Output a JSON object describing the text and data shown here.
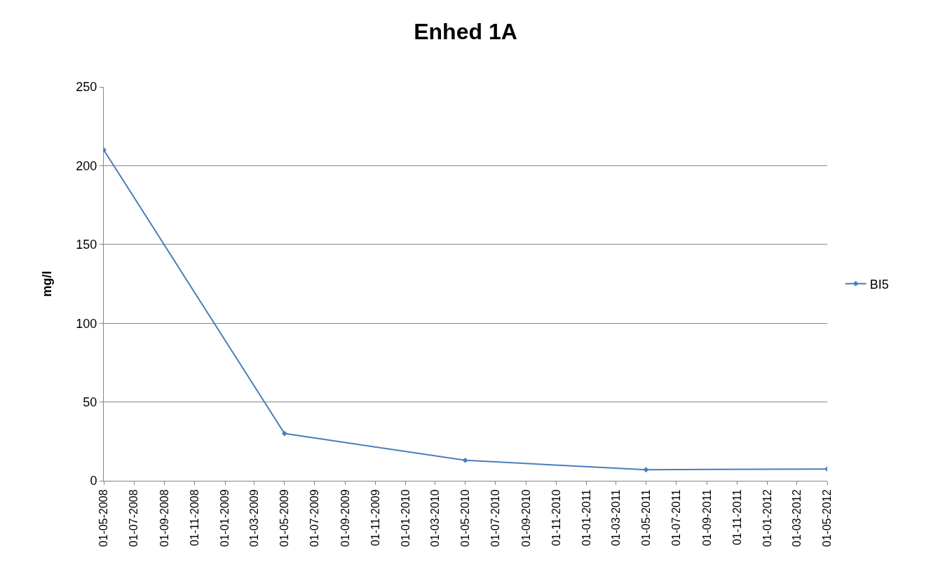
{
  "chart_data": {
    "type": "line",
    "title": "Enhed 1A",
    "ylabel": "mg/l",
    "x": [
      "2008-05-01",
      "2009-05-01",
      "2010-05-01",
      "2011-05-01",
      "2012-05-01"
    ],
    "series": [
      {
        "name": "BI5",
        "color": "#4a7ebb",
        "values": [
          210,
          30,
          13,
          7,
          7.5
        ]
      }
    ],
    "xlim": [
      "2008-05-01",
      "2012-05-01"
    ],
    "xticks": [
      {
        "value": "2008-05-01",
        "label": "01-05-2008"
      },
      {
        "value": "2008-07-01",
        "label": "01-07-2008"
      },
      {
        "value": "2008-09-01",
        "label": "01-09-2008"
      },
      {
        "value": "2008-11-01",
        "label": "01-11-2008"
      },
      {
        "value": "2009-01-01",
        "label": "01-01-2009"
      },
      {
        "value": "2009-03-01",
        "label": "01-03-2009"
      },
      {
        "value": "2009-05-01",
        "label": "01-05-2009"
      },
      {
        "value": "2009-07-01",
        "label": "01-07-2009"
      },
      {
        "value": "2009-09-01",
        "label": "01-09-2009"
      },
      {
        "value": "2009-11-01",
        "label": "01-11-2009"
      },
      {
        "value": "2010-01-01",
        "label": "01-01-2010"
      },
      {
        "value": "2010-03-01",
        "label": "01-03-2010"
      },
      {
        "value": "2010-05-01",
        "label": "01-05-2010"
      },
      {
        "value": "2010-07-01",
        "label": "01-07-2010"
      },
      {
        "value": "2010-09-01",
        "label": "01-09-2010"
      },
      {
        "value": "2010-11-01",
        "label": "01-11-2010"
      },
      {
        "value": "2011-01-01",
        "label": "01-01-2011"
      },
      {
        "value": "2011-03-01",
        "label": "01-03-2011"
      },
      {
        "value": "2011-05-01",
        "label": "01-05-2011"
      },
      {
        "value": "2011-07-01",
        "label": "01-07-2011"
      },
      {
        "value": "2011-09-01",
        "label": "01-09-2011"
      },
      {
        "value": "2011-11-01",
        "label": "01-11-2011"
      },
      {
        "value": "2012-01-01",
        "label": "01-01-2012"
      },
      {
        "value": "2012-03-01",
        "label": "01-03-2012"
      },
      {
        "value": "2012-05-01",
        "label": "01-05-2012"
      }
    ],
    "ylim": [
      0,
      250
    ],
    "yticks": [
      0,
      50,
      100,
      150,
      200,
      250
    ],
    "grid": "y",
    "legend": "right",
    "marker": "diamond",
    "line_style": "solid"
  }
}
